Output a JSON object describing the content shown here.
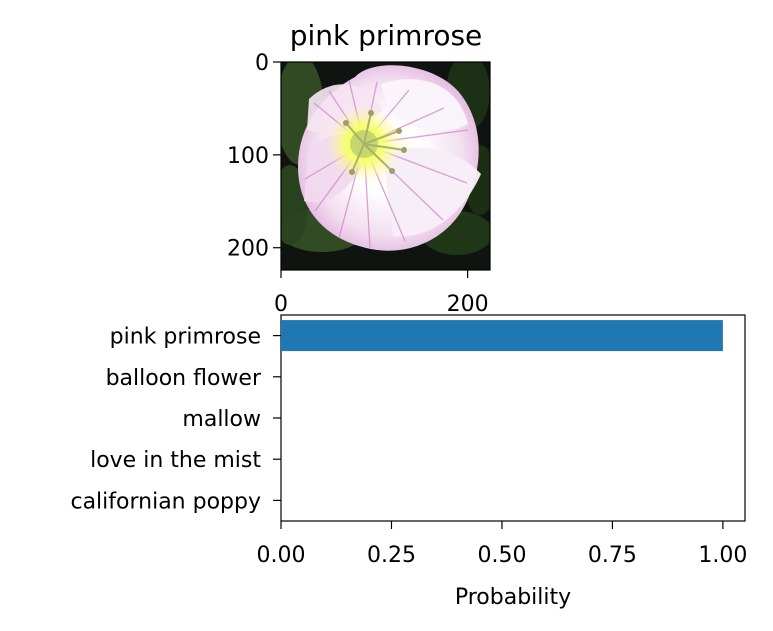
{
  "chart_data": [
    {
      "type": "image",
      "title": "pink primrose",
      "xlim": [
        0,
        224
      ],
      "ylim": [
        224,
        0
      ],
      "xticks": [
        0,
        200
      ],
      "yticks": [
        0,
        100,
        200
      ],
      "xtick_labels": [
        "0",
        "200"
      ],
      "ytick_labels": [
        "0",
        "100",
        "200"
      ],
      "image_subject": "pink primrose flower"
    },
    {
      "type": "bar",
      "orientation": "horizontal",
      "categories": [
        "pink primrose",
        "balloon flower",
        "mallow",
        "love in the mist",
        "californian poppy"
      ],
      "values": [
        1.0,
        0.0,
        0.0,
        0.0,
        0.0
      ],
      "xlabel": "Probability",
      "ylabel": "",
      "xlim": [
        0,
        1.05
      ],
      "xticks": [
        0.0,
        0.25,
        0.5,
        0.75,
        1.0
      ],
      "xtick_labels": [
        "0.00",
        "0.25",
        "0.50",
        "0.75",
        "1.00"
      ],
      "bar_color": "#1f77b4",
      "grid": false
    }
  ]
}
